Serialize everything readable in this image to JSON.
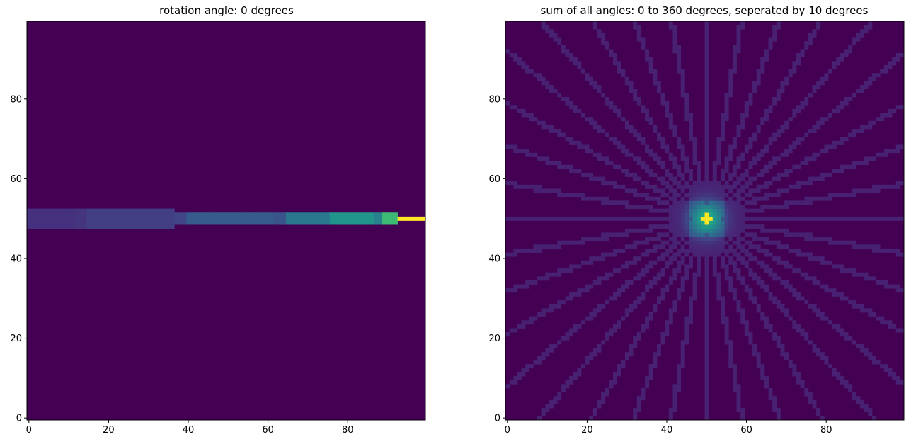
{
  "chart_data": [
    {
      "type": "heatmap",
      "title": "rotation angle: 0 degrees",
      "xlabel": "",
      "ylabel": "",
      "xlim": [
        -0.5,
        99.5
      ],
      "ylim": [
        -0.5,
        99.5
      ],
      "origin": "lower",
      "colormap": "viridis",
      "grid": false,
      "x_ticks": [
        0,
        20,
        40,
        60,
        80
      ],
      "y_ticks": [
        0,
        20,
        40,
        60,
        80
      ],
      "band_center_y": 50,
      "band_segments": [
        {
          "x_start": 0,
          "x_end": 12,
          "half_width": 2.5,
          "intensity": 0.18
        },
        {
          "x_start": 12,
          "x_end": 15,
          "half_width": 2.0,
          "intensity": 0.19
        },
        {
          "x_start": 15,
          "x_end": 37,
          "half_width": 2.0,
          "intensity": 0.23
        },
        {
          "x_start": 37,
          "x_end": 40,
          "half_width": 1.5,
          "intensity": 0.26
        },
        {
          "x_start": 40,
          "x_end": 62,
          "half_width": 1.5,
          "intensity": 0.36
        },
        {
          "x_start": 62,
          "x_end": 65,
          "half_width": 1.5,
          "intensity": 0.33
        },
        {
          "x_start": 65,
          "x_end": 76,
          "half_width": 1.0,
          "intensity": 0.5
        },
        {
          "x_start": 76,
          "x_end": 87,
          "half_width": 1.0,
          "intensity": 0.65
        },
        {
          "x_start": 87,
          "x_end": 89,
          "half_width": 1.0,
          "intensity": 0.55
        },
        {
          "x_start": 89,
          "x_end": 93,
          "half_width": 1.0,
          "intensity": 0.85
        },
        {
          "x_start": 93,
          "x_end": 100,
          "half_width": 0.5,
          "intensity": 1.0
        }
      ]
    },
    {
      "type": "heatmap",
      "title": "sum of all angles: 0 to 360 degrees, seperated by 10 degrees",
      "xlabel": "",
      "ylabel": "",
      "xlim": [
        -0.5,
        99.5
      ],
      "ylim": [
        -0.5,
        99.5
      ],
      "origin": "lower",
      "colormap": "viridis",
      "grid": false,
      "x_ticks": [
        0,
        20,
        40,
        60,
        80
      ],
      "y_ticks": [
        0,
        20,
        40,
        60,
        80
      ],
      "center": [
        50,
        50
      ],
      "angles_start_deg": 0,
      "angles_end_deg": 360,
      "angle_step_deg": 10,
      "ray_intensity": 0.12,
      "peak_intensity": 1.0
    }
  ],
  "colors": {
    "viridis_low": "#440154",
    "viridis_high": "#fde725"
  }
}
